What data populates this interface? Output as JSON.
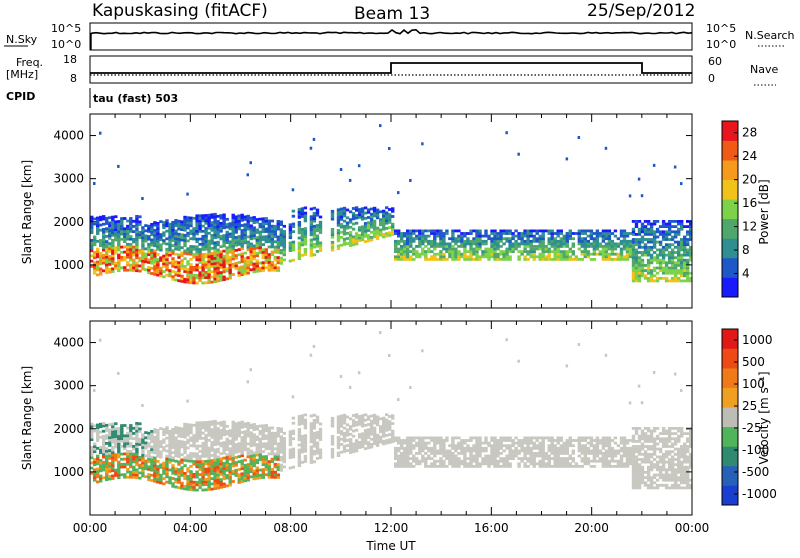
{
  "header": {
    "station": "Kapuskasing (fitACF)",
    "beam": "Beam 13",
    "date": "25/Sep/2012"
  },
  "sky_panel": {
    "left_label": "N.Sky",
    "left_ticks": [
      "10^5",
      "10^0"
    ],
    "right_ticks": [
      "10^5",
      "10^0"
    ],
    "right_label": "N.Search"
  },
  "freq_panel": {
    "left_label_1": "Freq.",
    "left_label_2": "[MHz]",
    "left_ticks": [
      "18",
      "8"
    ],
    "right_ticks": [
      "60",
      "0"
    ],
    "right_label": "Nave",
    "cpid_label": "CPID",
    "cpid_text": "tau (fast) 503"
  },
  "colors": {
    "power_scale": [
      "#1a1aff",
      "#1e58c8",
      "#2d8f8f",
      "#4fa86b",
      "#7ed24a",
      "#f2c21b",
      "#f59a1a",
      "#f05a14",
      "#e8141e"
    ],
    "velocity_scale": [
      "#1a3fd0",
      "#2660b8",
      "#2f8a72",
      "#4fb45a",
      "#bdbdb6",
      "#f0a020",
      "#f07a18",
      "#f04a14",
      "#e01818"
    ],
    "ground_scatter": "#c8c8c0"
  },
  "chart_data": [
    {
      "type": "heatmap",
      "name": "power",
      "xlabel": "",
      "ylabel": "Slant Range [km]",
      "x_range_hours": [
        0,
        24
      ],
      "ylim": [
        0,
        4500
      ],
      "y_ticks": [
        "1000",
        "2000",
        "3000",
        "4000"
      ],
      "colorbar_label": "Power [dB]",
      "colorbar_ticks": [
        "4",
        "8",
        "12",
        "16",
        "20",
        "24",
        "28"
      ],
      "colorbar_range": [
        0,
        30
      ]
    },
    {
      "type": "heatmap",
      "name": "velocity",
      "xlabel": "Time UT",
      "ylabel": "Slant Range [km]",
      "x_ticks": [
        "00:00",
        "04:00",
        "08:00",
        "12:00",
        "16:00",
        "20:00",
        "00:00"
      ],
      "x_range_hours": [
        0,
        24
      ],
      "ylim": [
        0,
        4500
      ],
      "y_ticks": [
        "1000",
        "2000",
        "3000",
        "4000"
      ],
      "colorbar_label": "Velocity [m s⁻¹]",
      "colorbar_ticks": [
        "1000",
        "500",
        "100",
        "25",
        "-25",
        "-100",
        "-500",
        "-1000"
      ]
    }
  ]
}
